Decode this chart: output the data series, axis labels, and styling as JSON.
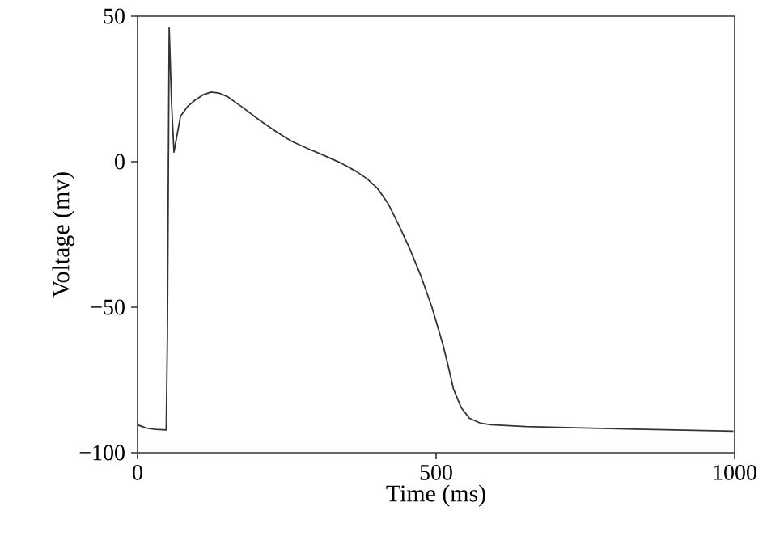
{
  "chart_data": {
    "type": "line",
    "xlabel": "Time (ms)",
    "ylabel": "Voltage (mv)",
    "xlim": [
      0,
      1000
    ],
    "ylim": [
      -100,
      50
    ],
    "xticks": [
      0,
      500,
      1000
    ],
    "yticks": [
      {
        "value": -100,
        "label": "−100"
      },
      {
        "value": -50,
        "label": "−50"
      },
      0,
      50
    ],
    "grid": false,
    "marker": "none",
    "line_style": "solid",
    "series": [
      {
        "color": "#333333",
        "x": [
          0,
          14,
          30,
          48,
          50,
          53,
          57,
          61,
          66,
          72,
          84,
          96,
          110,
          123,
          136,
          150,
          177,
          204,
          231,
          258,
          285,
          312,
          339,
          366,
          384,
          402,
          420,
          438,
          456,
          475,
          493,
          511,
          520,
          529,
          542,
          556,
          574,
          592,
          650,
          746,
          850,
          998
        ],
        "values": [
          -90.4,
          -91.5,
          -92,
          -92.2,
          -60,
          45.9,
          20,
          3.3,
          9,
          15.6,
          19,
          21.1,
          23,
          23.9,
          23.6,
          22.4,
          18.5,
          14.3,
          10.5,
          7,
          4.5,
          2.2,
          -0.3,
          -3.3,
          -5.8,
          -9.2,
          -14.5,
          -22,
          -30,
          -39.5,
          -50,
          -62.5,
          -70,
          -78,
          -84.5,
          -88.2,
          -89.8,
          -90.4,
          -91,
          -91.5,
          -92,
          -92.6
        ]
      }
    ]
  }
}
